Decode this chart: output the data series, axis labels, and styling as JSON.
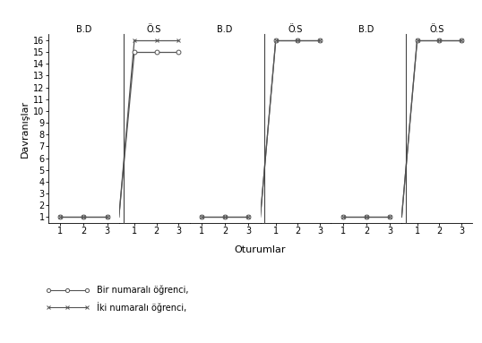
{
  "ylabel": "Davranışlar",
  "xlabel": "Oturumlar",
  "ylim": [
    0.5,
    16.5
  ],
  "yticks": [
    1,
    2,
    3,
    4,
    5,
    6,
    7,
    8,
    9,
    10,
    11,
    12,
    13,
    14,
    15,
    16
  ],
  "bd_label": "B.D",
  "os_label": "Ö.S",
  "legend1": "Bir numaralı öğrenci,",
  "legend2": "İki numaralı öğrenci,",
  "line_color": "#555555",
  "fontsize_label": 8,
  "fontsize_tick": 7,
  "fontsize_bd_os": 7,
  "groups": [
    {
      "s1_bd": [
        1,
        1,
        1
      ],
      "s1_os": [
        15,
        15,
        15
      ],
      "s2_bd": [
        1,
        1,
        1
      ],
      "s2_os": [
        16,
        16,
        16
      ]
    },
    {
      "s1_bd": [
        1,
        1,
        1
      ],
      "s1_os": [
        16,
        16,
        16
      ],
      "s2_bd": [
        1,
        1,
        1
      ],
      "s2_os": [
        16,
        16,
        16
      ]
    },
    {
      "s1_bd": [
        1,
        1,
        1
      ],
      "s1_os": [
        16,
        16,
        16
      ],
      "s2_bd": [
        1,
        1,
        1
      ],
      "s2_os": [
        16,
        16,
        16
      ]
    }
  ]
}
